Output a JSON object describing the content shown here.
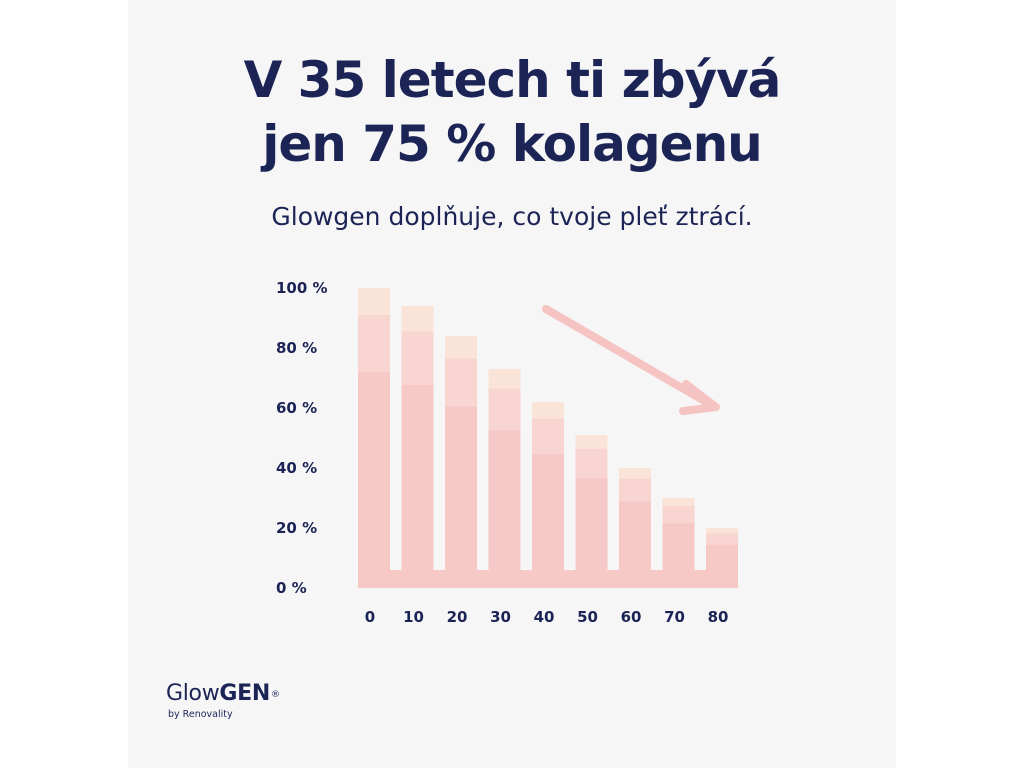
{
  "headline": {
    "line1": "V 35 letech ti zbývá",
    "line2": "jen 75 % kolagenu"
  },
  "subtitle": "Glowgen doplňuje, co tvoje pleť ztrácí.",
  "brand": {
    "name_light": "Glow",
    "name_bold": "GEN",
    "registered": "®",
    "tagline": "by Renovality"
  },
  "colors": {
    "text": "#1c2456",
    "bar_dark": "#f6c9c7",
    "bar_mid": "#f8d5d1",
    "bar_light": "#fae3d7",
    "arrow": "#f5c4c2",
    "background": "#f6f6f7"
  },
  "chart_data": {
    "type": "bar",
    "categories": [
      "0",
      "10",
      "20",
      "30",
      "40",
      "50",
      "60",
      "70",
      "80"
    ],
    "values": [
      100,
      94,
      84,
      73,
      62,
      51,
      40,
      30,
      20
    ],
    "ylim": [
      0,
      100
    ],
    "yticks": [
      "0 %",
      "20 %",
      "40 %",
      "60 %",
      "80 %",
      "100 %"
    ],
    "ytick_values": [
      0,
      20,
      40,
      60,
      80,
      100
    ],
    "trend": "decreasing",
    "grid": false,
    "legend": "none"
  }
}
